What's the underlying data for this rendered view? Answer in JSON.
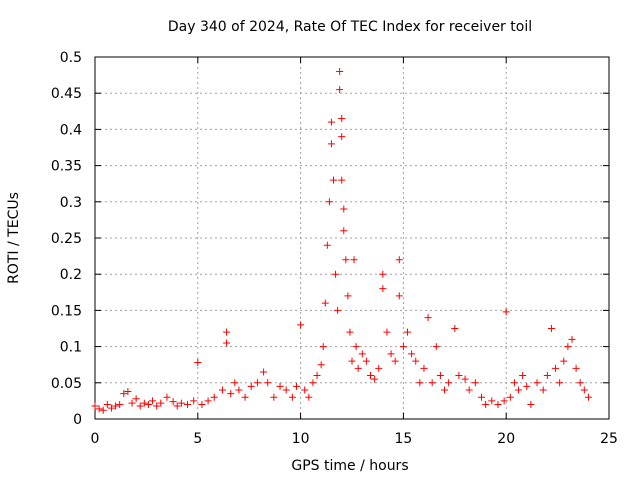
{
  "chart_data": {
    "type": "scatter",
    "title": "Day 340 of 2024, Rate Of TEC Index for receiver toil",
    "xlabel": "GPS time / hours",
    "ylabel": "ROTI / TECUs",
    "xlim": [
      0,
      25
    ],
    "ylim": [
      0,
      0.5
    ],
    "x_ticks": [
      0,
      5,
      10,
      15,
      20,
      25
    ],
    "x_tick_labels": [
      "0",
      "5",
      "10",
      "15",
      "20",
      "25"
    ],
    "y_ticks": [
      0,
      0.05,
      0.1,
      0.15,
      0.2,
      0.25,
      0.3,
      0.35,
      0.4,
      0.45,
      0.5
    ],
    "y_tick_labels": [
      "0",
      "0.05",
      "0.1",
      "0.15",
      "0.2",
      "0.25",
      "0.3",
      "0.35",
      "0.4",
      "0.45",
      "0.5"
    ],
    "grid": true,
    "marker": "+",
    "marker_color": "#ff0000",
    "series": [
      {
        "name": "ROTI",
        "points": [
          [
            0.0,
            0.018
          ],
          [
            0.2,
            0.014
          ],
          [
            0.4,
            0.012
          ],
          [
            0.6,
            0.02
          ],
          [
            0.8,
            0.015
          ],
          [
            1.0,
            0.018
          ],
          [
            1.2,
            0.02
          ],
          [
            1.4,
            0.035
          ],
          [
            1.6,
            0.038
          ],
          [
            1.8,
            0.022
          ],
          [
            2.0,
            0.028
          ],
          [
            2.2,
            0.018
          ],
          [
            2.4,
            0.022
          ],
          [
            2.6,
            0.02
          ],
          [
            2.8,
            0.025
          ],
          [
            3.0,
            0.018
          ],
          [
            3.2,
            0.022
          ],
          [
            3.5,
            0.03
          ],
          [
            3.8,
            0.024
          ],
          [
            4.0,
            0.018
          ],
          [
            4.2,
            0.022
          ],
          [
            4.5,
            0.02
          ],
          [
            4.8,
            0.025
          ],
          [
            5.0,
            0.078
          ],
          [
            5.2,
            0.02
          ],
          [
            5.5,
            0.025
          ],
          [
            5.8,
            0.03
          ],
          [
            6.2,
            0.04
          ],
          [
            6.4,
            0.12
          ],
          [
            6.4,
            0.105
          ],
          [
            6.6,
            0.035
          ],
          [
            6.8,
            0.05
          ],
          [
            7.0,
            0.04
          ],
          [
            7.3,
            0.03
          ],
          [
            7.6,
            0.045
          ],
          [
            7.9,
            0.05
          ],
          [
            8.2,
            0.065
          ],
          [
            8.4,
            0.05
          ],
          [
            8.7,
            0.03
          ],
          [
            9.0,
            0.045
          ],
          [
            9.3,
            0.04
          ],
          [
            9.6,
            0.03
          ],
          [
            9.8,
            0.045
          ],
          [
            10.0,
            0.13
          ],
          [
            10.2,
            0.04
          ],
          [
            10.4,
            0.03
          ],
          [
            10.6,
            0.05
          ],
          [
            10.8,
            0.06
          ],
          [
            11.0,
            0.075
          ],
          [
            11.1,
            0.1
          ],
          [
            11.2,
            0.16
          ],
          [
            11.3,
            0.24
          ],
          [
            11.4,
            0.3
          ],
          [
            11.5,
            0.38
          ],
          [
            11.5,
            0.41
          ],
          [
            11.6,
            0.33
          ],
          [
            11.7,
            0.2
          ],
          [
            11.8,
            0.15
          ],
          [
            11.9,
            0.455
          ],
          [
            11.9,
            0.48
          ],
          [
            12.0,
            0.415
          ],
          [
            12.0,
            0.39
          ],
          [
            12.0,
            0.33
          ],
          [
            12.1,
            0.29
          ],
          [
            12.1,
            0.26
          ],
          [
            12.2,
            0.22
          ],
          [
            12.3,
            0.17
          ],
          [
            12.4,
            0.12
          ],
          [
            12.5,
            0.08
          ],
          [
            12.6,
            0.22
          ],
          [
            12.7,
            0.1
          ],
          [
            12.8,
            0.07
          ],
          [
            13.0,
            0.09
          ],
          [
            13.2,
            0.08
          ],
          [
            13.4,
            0.06
          ],
          [
            13.6,
            0.055
          ],
          [
            13.8,
            0.07
          ],
          [
            14.0,
            0.2
          ],
          [
            14.0,
            0.18
          ],
          [
            14.2,
            0.12
          ],
          [
            14.4,
            0.09
          ],
          [
            14.6,
            0.08
          ],
          [
            14.8,
            0.22
          ],
          [
            14.8,
            0.17
          ],
          [
            15.0,
            0.1
          ],
          [
            15.2,
            0.12
          ],
          [
            15.4,
            0.09
          ],
          [
            15.6,
            0.08
          ],
          [
            15.8,
            0.05
          ],
          [
            16.0,
            0.07
          ],
          [
            16.2,
            0.14
          ],
          [
            16.4,
            0.05
          ],
          [
            16.6,
            0.1
          ],
          [
            16.8,
            0.06
          ],
          [
            17.0,
            0.04
          ],
          [
            17.2,
            0.05
          ],
          [
            17.5,
            0.125
          ],
          [
            17.7,
            0.06
          ],
          [
            18.0,
            0.055
          ],
          [
            18.2,
            0.04
          ],
          [
            18.5,
            0.05
          ],
          [
            18.8,
            0.03
          ],
          [
            19.0,
            0.02
          ],
          [
            19.3,
            0.025
          ],
          [
            19.6,
            0.02
          ],
          [
            19.9,
            0.025
          ],
          [
            20.0,
            0.148
          ],
          [
            20.2,
            0.03
          ],
          [
            20.4,
            0.05
          ],
          [
            20.6,
            0.04
          ],
          [
            20.8,
            0.06
          ],
          [
            21.0,
            0.045
          ],
          [
            21.2,
            0.02
          ],
          [
            21.5,
            0.05
          ],
          [
            21.8,
            0.04
          ],
          [
            22.0,
            0.06
          ],
          [
            22.2,
            0.125
          ],
          [
            22.4,
            0.07
          ],
          [
            22.6,
            0.05
          ],
          [
            22.8,
            0.08
          ],
          [
            23.0,
            0.1
          ],
          [
            23.2,
            0.11
          ],
          [
            23.4,
            0.07
          ],
          [
            23.6,
            0.05
          ],
          [
            23.8,
            0.04
          ],
          [
            24.0,
            0.03
          ]
        ]
      }
    ]
  }
}
